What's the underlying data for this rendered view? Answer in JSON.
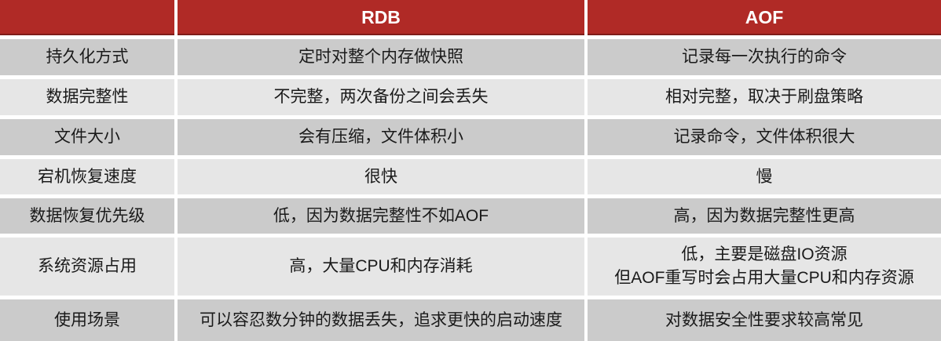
{
  "table": {
    "title_semantic": "redis-rdb-vs-aof-comparison",
    "header": {
      "corner": "",
      "rdb": "RDB",
      "aof": "AOF"
    },
    "rows": [
      {
        "label": "持久化方式",
        "rdb": "定时对整个内存做快照",
        "aof": "记录每一次执行的命令"
      },
      {
        "label": "数据完整性",
        "rdb": "不完整，两次备份之间会丢失",
        "aof": "相对完整，取决于刷盘策略"
      },
      {
        "label": "文件大小",
        "rdb": "会有压缩，文件体积小",
        "aof": "记录命令，文件体积很大"
      },
      {
        "label": "宕机恢复速度",
        "rdb": "很快",
        "aof": "慢"
      },
      {
        "label": "数据恢复优先级",
        "rdb": "低，因为数据完整性不如AOF",
        "aof": "高，因为数据完整性更高"
      },
      {
        "label": "系统资源占用",
        "rdb": "高，大量CPU和内存消耗",
        "aof": "低，主要是磁盘IO资源\n但AOF重写时会占用大量CPU和内存资源"
      },
      {
        "label": "使用场景",
        "rdb": "可以容忍数分钟的数据丢失，追求更快的启动速度",
        "aof": "对数据安全性要求较高常见"
      }
    ],
    "colors": {
      "header_background": "#b02a26",
      "header_bottom_border": "#7f1c19",
      "header_text": "#ffffff",
      "row_band_dark": "#cbcbcb",
      "row_band_light": "#e6e6e6",
      "gridline": "#ffffff",
      "body_text": "#1a1a1a"
    }
  }
}
